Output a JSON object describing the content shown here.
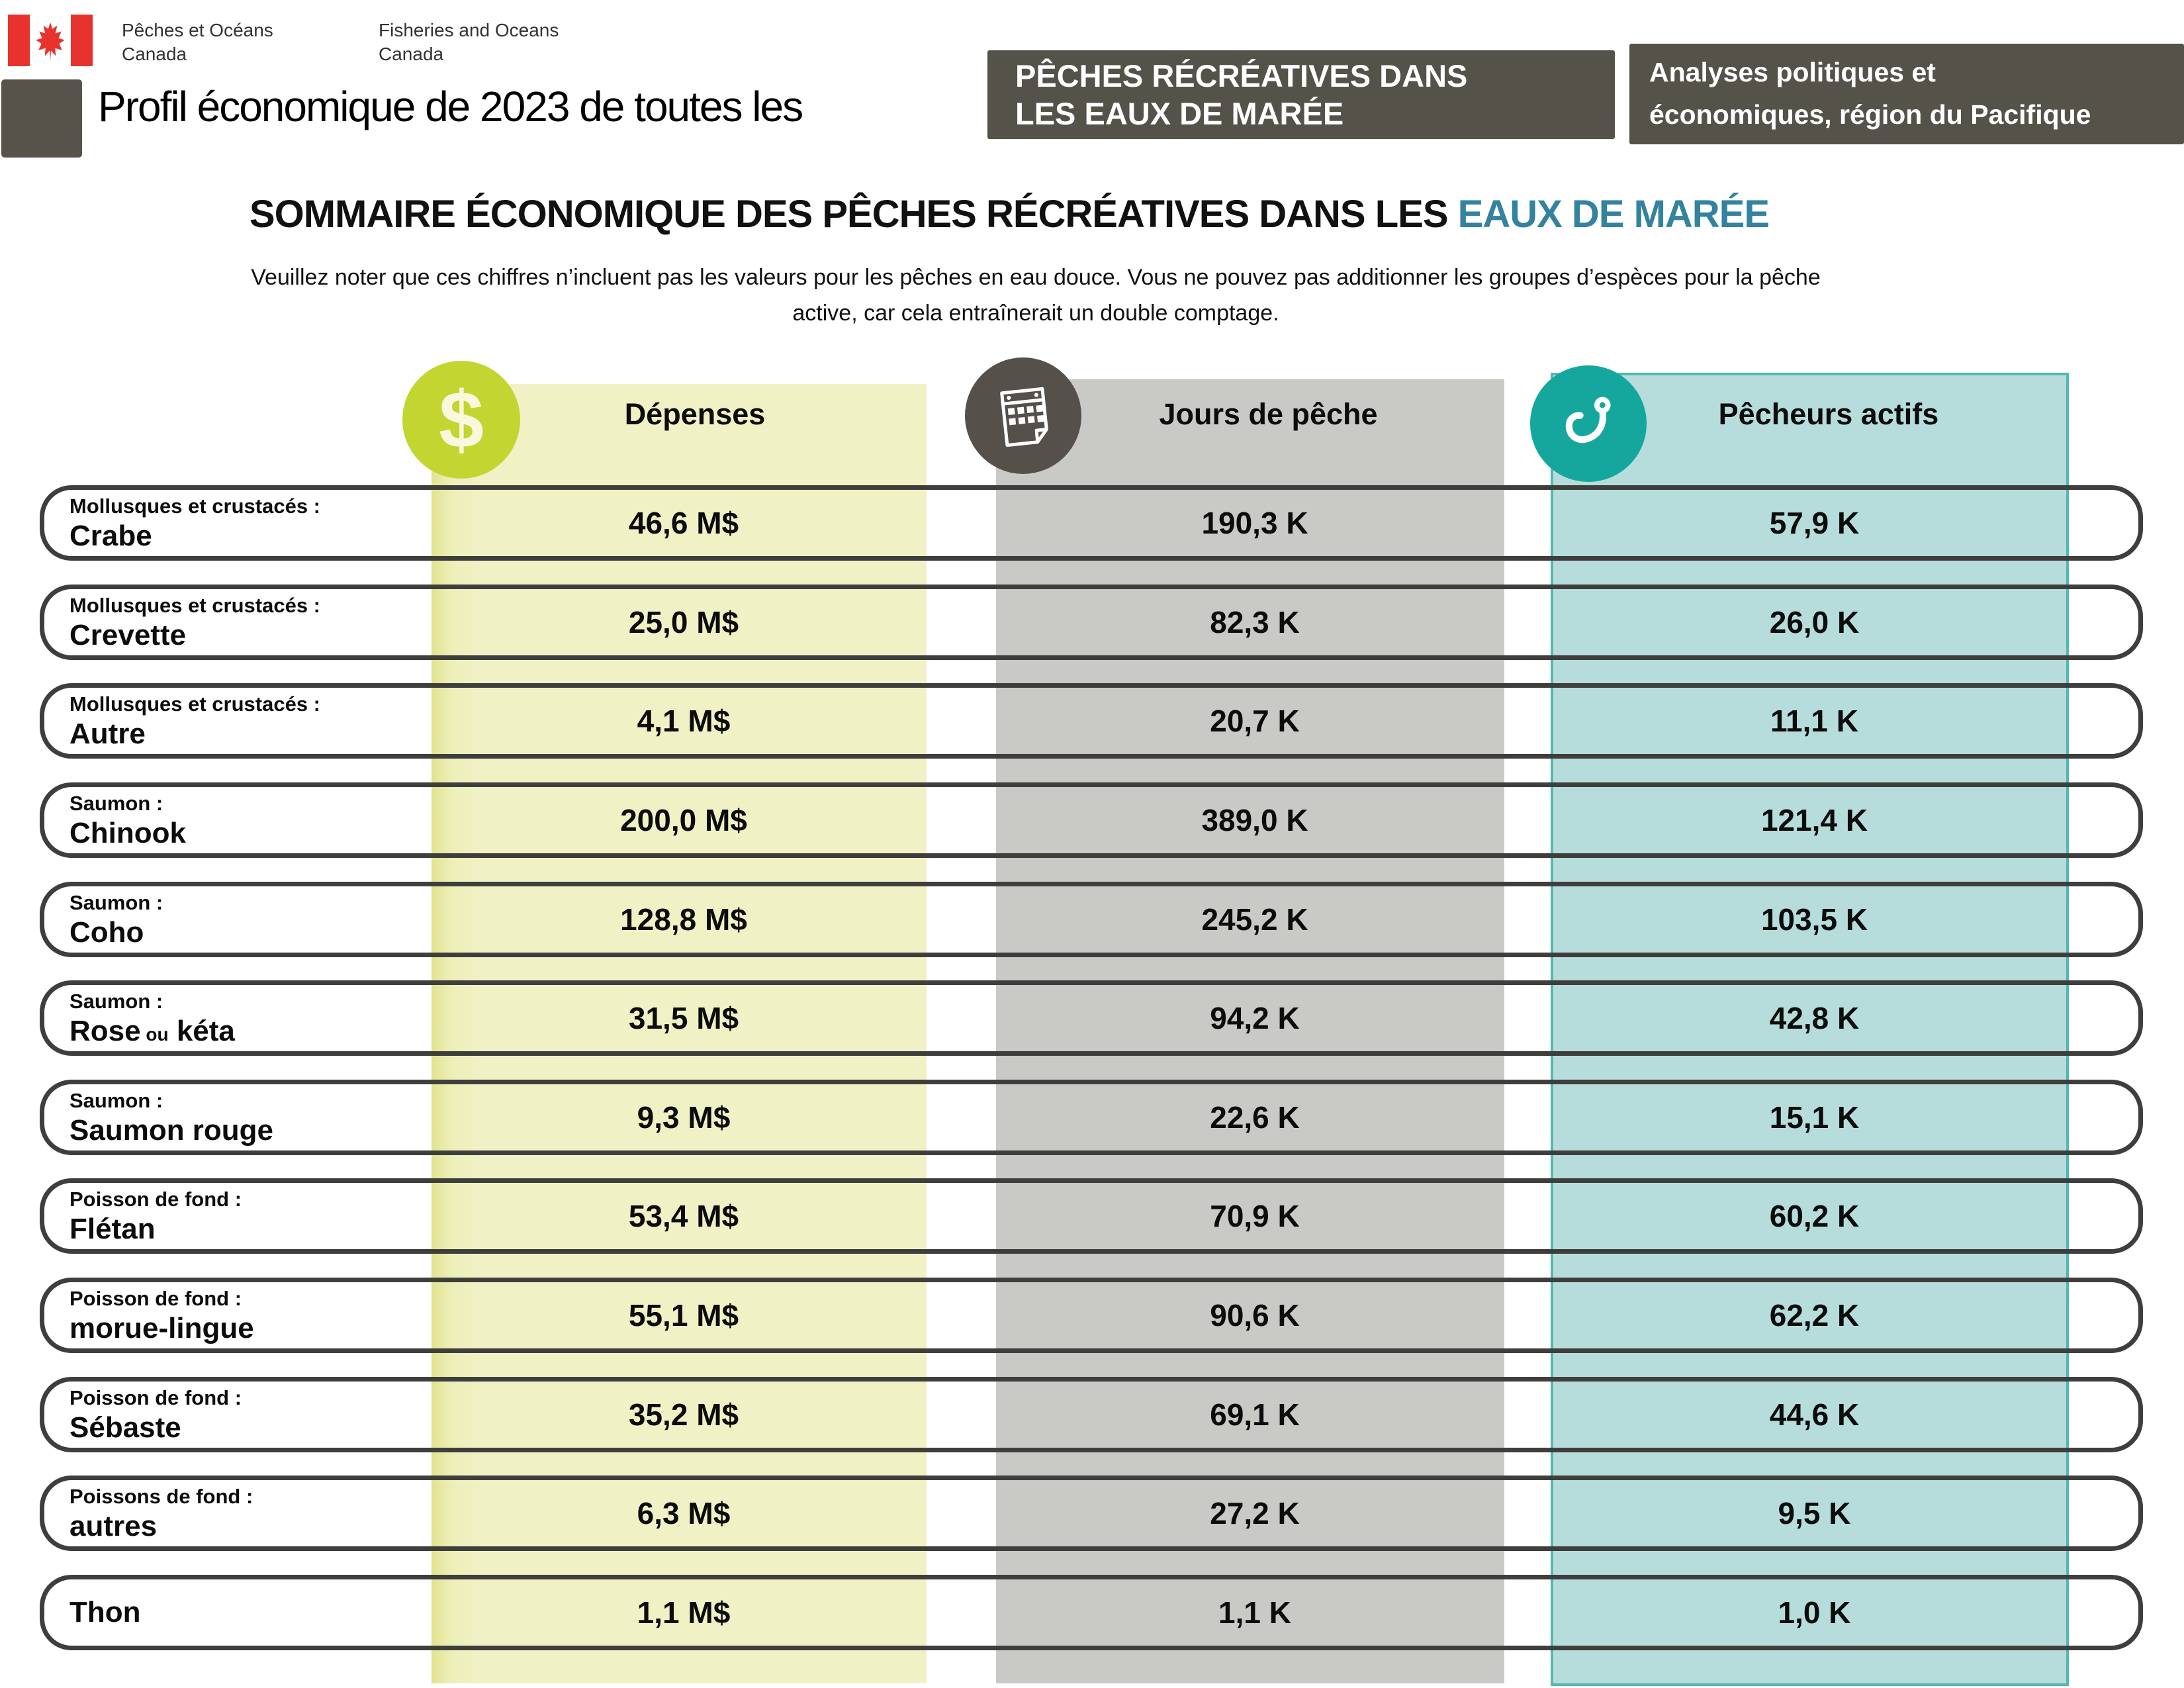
{
  "header": {
    "logo_french": "Pêches et Océans\nCanada",
    "logo_english": "Fisheries and Oceans\nCanada",
    "title": "Profil économique de 2023 de toutes les",
    "title_box_line1": "PÊCHES RÉCRÉATIVES DANS",
    "title_box_line2": "LES EAUX DE MARÉE",
    "org_box_line1": "Analyses politiques et",
    "org_box_line2": "économiques, région du Pacifique"
  },
  "summary": {
    "heading_black": "SOMMAIRE ÉCONOMIQUE DES PÊCHES RÉCRÉATIVES DANS LES ",
    "heading_teal": "EAUX DE MARÉE",
    "note_line1": "Veuillez noter que ces chiffres n’incluent pas les valeurs pour les pêches en eau douce. Vous ne pouvez pas additionner les groupes d’espèces pour la pêche",
    "note_line2": "active, car cela entraînerait un double comptage."
  },
  "colors": {
    "accent_teal_text": "#33829f",
    "dollar_circle": "#c3d530",
    "calendar_circle": "#55514a",
    "hook_circle": "#15a79d",
    "band_yellow": "#f1f1c6",
    "band_gray": "#c9c9c6",
    "band_teal": "#b6dddc",
    "dark_box": "#55524a"
  },
  "table": {
    "columns": [
      {
        "label": "Dépenses",
        "icon": "dollar-icon"
      },
      {
        "label": "Jours de pêche",
        "icon": "calendar-icon"
      },
      {
        "label": "Pêcheurs actifs",
        "icon": "hook-icon"
      }
    ],
    "rows": [
      {
        "category": "Mollusques et crustacés :",
        "species": "Crabe",
        "depenses": "46,6 M$",
        "jours": "190,3 K",
        "pecheurs": "57,9 K"
      },
      {
        "category": "Mollusques et crustacés :",
        "species": "Crevette",
        "depenses": "25,0 M$",
        "jours": "82,3 K",
        "pecheurs": "26,0 K"
      },
      {
        "category": "Mollusques et crustacés :",
        "species": "Autre",
        "depenses": "4,1 M$",
        "jours": "20,7 K",
        "pecheurs": "11,1 K"
      },
      {
        "category": "Saumon :",
        "species": "Chinook",
        "depenses": "200,0 M$",
        "jours": "389,0 K",
        "pecheurs": "121,4 K"
      },
      {
        "category": "Saumon :",
        "species": "Coho",
        "depenses": "128,8 M$",
        "jours": "245,2 K",
        "pecheurs": "103,5 K"
      },
      {
        "category": "Saumon :",
        "species": "Rose ou kéta",
        "species_parts": [
          "Rose",
          "ou",
          "kéta"
        ],
        "depenses": "31,5 M$",
        "jours": "94,2 K",
        "pecheurs": "42,8 K"
      },
      {
        "category": "Saumon :",
        "species": "Saumon rouge",
        "depenses": "9,3 M$",
        "jours": "22,6 K",
        "pecheurs": "15,1 K"
      },
      {
        "category": "Poisson de fond :",
        "species": "Flétan",
        "depenses": "53,4 M$",
        "jours": "70,9 K",
        "pecheurs": "60,2 K"
      },
      {
        "category": "Poisson de fond :",
        "species": "morue-lingue",
        "depenses": "55,1 M$",
        "jours": "90,6 K",
        "pecheurs": "62,2 K"
      },
      {
        "category": "Poisson de fond :",
        "species": "Sébaste",
        "depenses": "35,2 M$",
        "jours": "69,1 K",
        "pecheurs": "44,6 K"
      },
      {
        "category": "Poissons de fond :",
        "species": "autres",
        "depenses": "6,3 M$",
        "jours": "27,2 K",
        "pecheurs": "9,5 K"
      },
      {
        "category": "",
        "species": "Thon",
        "depenses": "1,1 M$",
        "jours": "1,1 K",
        "pecheurs": "1,0 K"
      }
    ]
  }
}
